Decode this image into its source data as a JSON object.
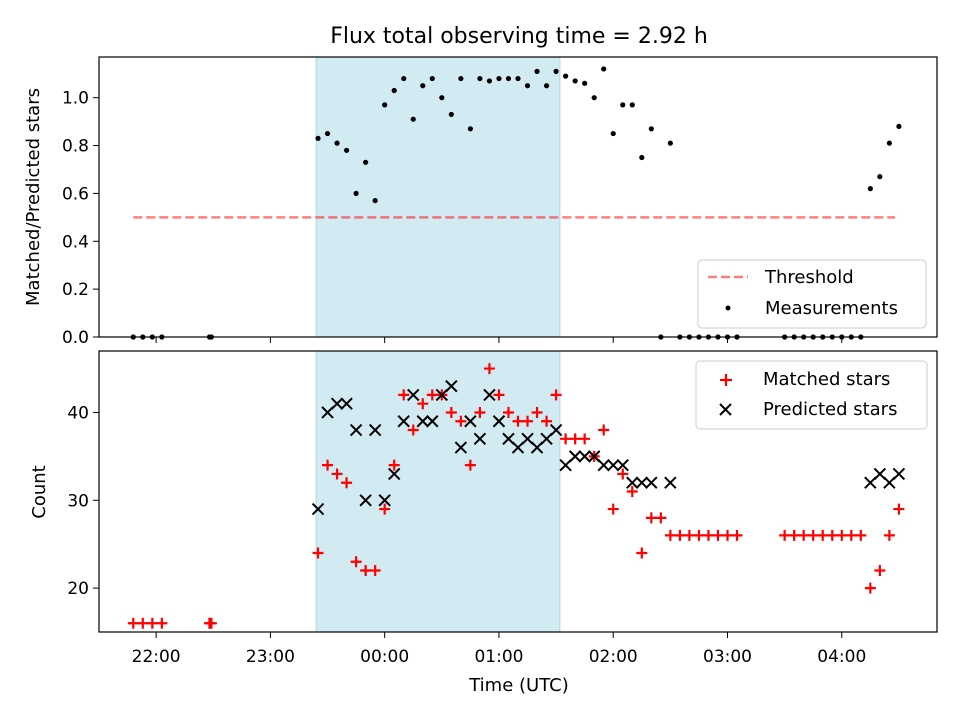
{
  "title": "Flux total observing time = 2.92 h",
  "colors": {
    "shade": "#add8e6",
    "threshold": "#ff0000",
    "measurement": "#000000",
    "matched": "#ff0000",
    "predicted": "#000000"
  },
  "chart_data": [
    {
      "type": "scatter",
      "panel": "top",
      "title": "Flux total observing time = 2.92 h",
      "xlabel": "",
      "ylabel": "Matched/Predicted stars",
      "xlim": [
        "21:30",
        "04:50"
      ],
      "ylim": [
        0.0,
        1.17
      ],
      "yticks": [
        "0.0",
        "0.2",
        "0.4",
        "0.6",
        "0.8",
        "1.0"
      ],
      "shaded_interval": [
        "23:24",
        "01:32"
      ],
      "legend_position": "lower-right",
      "threshold": {
        "name": "Threshold",
        "value": 0.5,
        "x_range": [
          "21:48",
          "04:28"
        ]
      },
      "measurements": {
        "name": "Measurements",
        "points": [
          [
            "21:48",
            0.0
          ],
          [
            "21:53",
            0.0
          ],
          [
            "21:58",
            0.0
          ],
          [
            "22:03",
            0.0
          ],
          [
            "22:28",
            0.0
          ],
          [
            "22:29",
            0.0
          ],
          [
            "23:25",
            0.83
          ],
          [
            "23:30",
            0.85
          ],
          [
            "23:35",
            0.81
          ],
          [
            "23:40",
            0.78
          ],
          [
            "23:45",
            0.6
          ],
          [
            "23:50",
            0.73
          ],
          [
            "23:55",
            0.57
          ],
          [
            "00:00",
            0.97
          ],
          [
            "00:05",
            1.03
          ],
          [
            "00:10",
            1.08
          ],
          [
            "00:15",
            0.91
          ],
          [
            "00:20",
            1.05
          ],
          [
            "00:25",
            1.08
          ],
          [
            "00:30",
            1.0
          ],
          [
            "00:35",
            0.93
          ],
          [
            "00:40",
            1.08
          ],
          [
            "00:45",
            0.87
          ],
          [
            "00:50",
            1.08
          ],
          [
            "00:55",
            1.07
          ],
          [
            "01:00",
            1.08
          ],
          [
            "01:05",
            1.08
          ],
          [
            "01:10",
            1.08
          ],
          [
            "01:15",
            1.05
          ],
          [
            "01:20",
            1.11
          ],
          [
            "01:25",
            1.05
          ],
          [
            "01:30",
            1.11
          ],
          [
            "01:35",
            1.09
          ],
          [
            "01:40",
            1.07
          ],
          [
            "01:45",
            1.06
          ],
          [
            "01:50",
            1.0
          ],
          [
            "01:55",
            1.12
          ],
          [
            "02:00",
            0.85
          ],
          [
            "02:05",
            0.97
          ],
          [
            "02:10",
            0.97
          ],
          [
            "02:15",
            0.75
          ],
          [
            "02:20",
            0.87
          ],
          [
            "02:25",
            0.0
          ],
          [
            "02:30",
            0.81
          ],
          [
            "02:35",
            0.0
          ],
          [
            "02:40",
            0.0
          ],
          [
            "02:45",
            0.0
          ],
          [
            "02:50",
            0.0
          ],
          [
            "02:55",
            0.0
          ],
          [
            "03:00",
            0.0
          ],
          [
            "03:05",
            0.0
          ],
          [
            "03:30",
            0.0
          ],
          [
            "03:35",
            0.0
          ],
          [
            "03:40",
            0.0
          ],
          [
            "03:45",
            0.0
          ],
          [
            "03:50",
            0.0
          ],
          [
            "03:55",
            0.0
          ],
          [
            "04:00",
            0.0
          ],
          [
            "04:05",
            0.0
          ],
          [
            "04:10",
            0.0
          ],
          [
            "04:15",
            0.62
          ],
          [
            "04:20",
            0.67
          ],
          [
            "04:25",
            0.81
          ],
          [
            "04:30",
            0.88
          ]
        ]
      }
    },
    {
      "type": "scatter",
      "panel": "bottom",
      "xlabel": "Time (UTC)",
      "ylabel": "Count",
      "xlim": [
        "21:30",
        "04:50"
      ],
      "ylim": [
        15,
        47
      ],
      "yticks": [
        "20",
        "30",
        "40"
      ],
      "xticks": [
        "22:00",
        "23:00",
        "00:00",
        "01:00",
        "02:00",
        "03:00",
        "04:00"
      ],
      "shaded_interval": [
        "23:24",
        "01:32"
      ],
      "legend_position": "upper-right",
      "series": [
        {
          "name": "Matched stars",
          "marker": "+",
          "points": [
            [
              "21:48",
              16
            ],
            [
              "21:53",
              16
            ],
            [
              "21:58",
              16
            ],
            [
              "22:03",
              16
            ],
            [
              "22:28",
              16
            ],
            [
              "22:29",
              16
            ],
            [
              "23:25",
              24
            ],
            [
              "23:30",
              34
            ],
            [
              "23:35",
              33
            ],
            [
              "23:40",
              32
            ],
            [
              "23:45",
              23
            ],
            [
              "23:50",
              22
            ],
            [
              "23:55",
              22
            ],
            [
              "00:00",
              29
            ],
            [
              "00:05",
              34
            ],
            [
              "00:10",
              42
            ],
            [
              "00:15",
              38
            ],
            [
              "00:20",
              41
            ],
            [
              "00:25",
              42
            ],
            [
              "00:30",
              42
            ],
            [
              "00:35",
              40
            ],
            [
              "00:40",
              39
            ],
            [
              "00:45",
              34
            ],
            [
              "00:50",
              40
            ],
            [
              "00:55",
              45
            ],
            [
              "01:00",
              42
            ],
            [
              "01:05",
              40
            ],
            [
              "01:10",
              39
            ],
            [
              "01:15",
              39
            ],
            [
              "01:20",
              40
            ],
            [
              "01:25",
              39
            ],
            [
              "01:30",
              42
            ],
            [
              "01:35",
              37
            ],
            [
              "01:40",
              37
            ],
            [
              "01:45",
              37
            ],
            [
              "01:50",
              35
            ],
            [
              "01:55",
              38
            ],
            [
              "02:00",
              29
            ],
            [
              "02:05",
              33
            ],
            [
              "02:10",
              31
            ],
            [
              "02:15",
              24
            ],
            [
              "02:20",
              28
            ],
            [
              "02:25",
              28
            ],
            [
              "02:30",
              26
            ],
            [
              "02:35",
              26
            ],
            [
              "02:40",
              26
            ],
            [
              "02:45",
              26
            ],
            [
              "02:50",
              26
            ],
            [
              "02:55",
              26
            ],
            [
              "03:00",
              26
            ],
            [
              "03:05",
              26
            ],
            [
              "03:30",
              26
            ],
            [
              "03:35",
              26
            ],
            [
              "03:40",
              26
            ],
            [
              "03:45",
              26
            ],
            [
              "03:50",
              26
            ],
            [
              "03:55",
              26
            ],
            [
              "04:00",
              26
            ],
            [
              "04:05",
              26
            ],
            [
              "04:10",
              26
            ],
            [
              "04:15",
              20
            ],
            [
              "04:20",
              22
            ],
            [
              "04:25",
              26
            ],
            [
              "04:30",
              29
            ]
          ]
        },
        {
          "name": "Predicted stars",
          "marker": "x",
          "points": [
            [
              "23:25",
              29
            ],
            [
              "23:30",
              40
            ],
            [
              "23:35",
              41
            ],
            [
              "23:40",
              41
            ],
            [
              "23:45",
              38
            ],
            [
              "23:50",
              30
            ],
            [
              "23:55",
              38
            ],
            [
              "00:00",
              30
            ],
            [
              "00:05",
              33
            ],
            [
              "00:10",
              39
            ],
            [
              "00:15",
              42
            ],
            [
              "00:20",
              39
            ],
            [
              "00:25",
              39
            ],
            [
              "00:30",
              42
            ],
            [
              "00:35",
              43
            ],
            [
              "00:40",
              36
            ],
            [
              "00:45",
              39
            ],
            [
              "00:50",
              37
            ],
            [
              "00:55",
              42
            ],
            [
              "01:00",
              39
            ],
            [
              "01:05",
              37
            ],
            [
              "01:10",
              36
            ],
            [
              "01:15",
              37
            ],
            [
              "01:20",
              36
            ],
            [
              "01:25",
              37
            ],
            [
              "01:30",
              38
            ],
            [
              "01:35",
              34
            ],
            [
              "01:40",
              35
            ],
            [
              "01:45",
              35
            ],
            [
              "01:50",
              35
            ],
            [
              "01:55",
              34
            ],
            [
              "02:00",
              34
            ],
            [
              "02:05",
              34
            ],
            [
              "02:10",
              32
            ],
            [
              "02:15",
              32
            ],
            [
              "02:20",
              32
            ],
            [
              "02:30",
              32
            ],
            [
              "04:15",
              32
            ],
            [
              "04:20",
              33
            ],
            [
              "04:25",
              32
            ],
            [
              "04:30",
              33
            ]
          ]
        }
      ]
    }
  ]
}
